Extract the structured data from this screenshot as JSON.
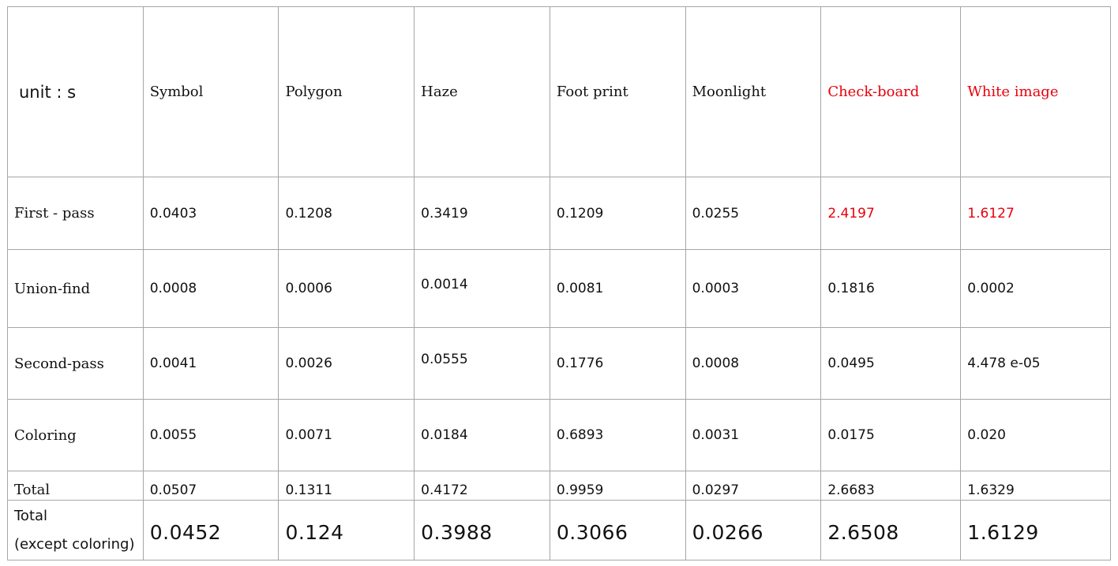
{
  "table": {
    "unit_label": "unit : s",
    "columns": [
      "Symbol",
      "Polygon",
      "Haze",
      "Foot print",
      "Moonlight",
      "Check-board",
      "White image"
    ],
    "highlight_color": "#e8000b",
    "highlighted_columns": [
      "Check-board",
      "White image"
    ],
    "rows": [
      {
        "label": "First - pass",
        "values": [
          "0.0403",
          "0.1208",
          "0.3419",
          "0.1209",
          "0.0255",
          "2.4197",
          "1.6127"
        ]
      },
      {
        "label": "Union-find",
        "values": [
          "0.0008",
          "0.0006",
          "0.0014",
          "0.0081",
          "0.0003",
          "0.1816",
          "0.0002"
        ]
      },
      {
        "label": "Second-pass",
        "values": [
          "0.0041",
          "0.0026",
          "0.0555",
          "0.1776",
          "0.0008",
          "0.0495",
          "4.478 e-05"
        ]
      },
      {
        "label": "Coloring",
        "values": [
          "0.0055",
          "0.0071",
          "0.0184",
          "0.6893",
          "0.0031",
          "0.0175",
          "0.020"
        ]
      },
      {
        "label": "Total",
        "values": [
          "0.0507",
          "0.1311",
          "0.4172",
          "0.9959",
          "0.0297",
          "2.6683",
          "1.6329"
        ]
      }
    ],
    "total_except": {
      "label_line1": "Total",
      "label_line2": "(except coloring)",
      "values": [
        "0.0452",
        "0.124",
        "0.3988",
        "0.3066",
        "0.0266",
        "2.6508",
        "1.6129"
      ]
    }
  }
}
